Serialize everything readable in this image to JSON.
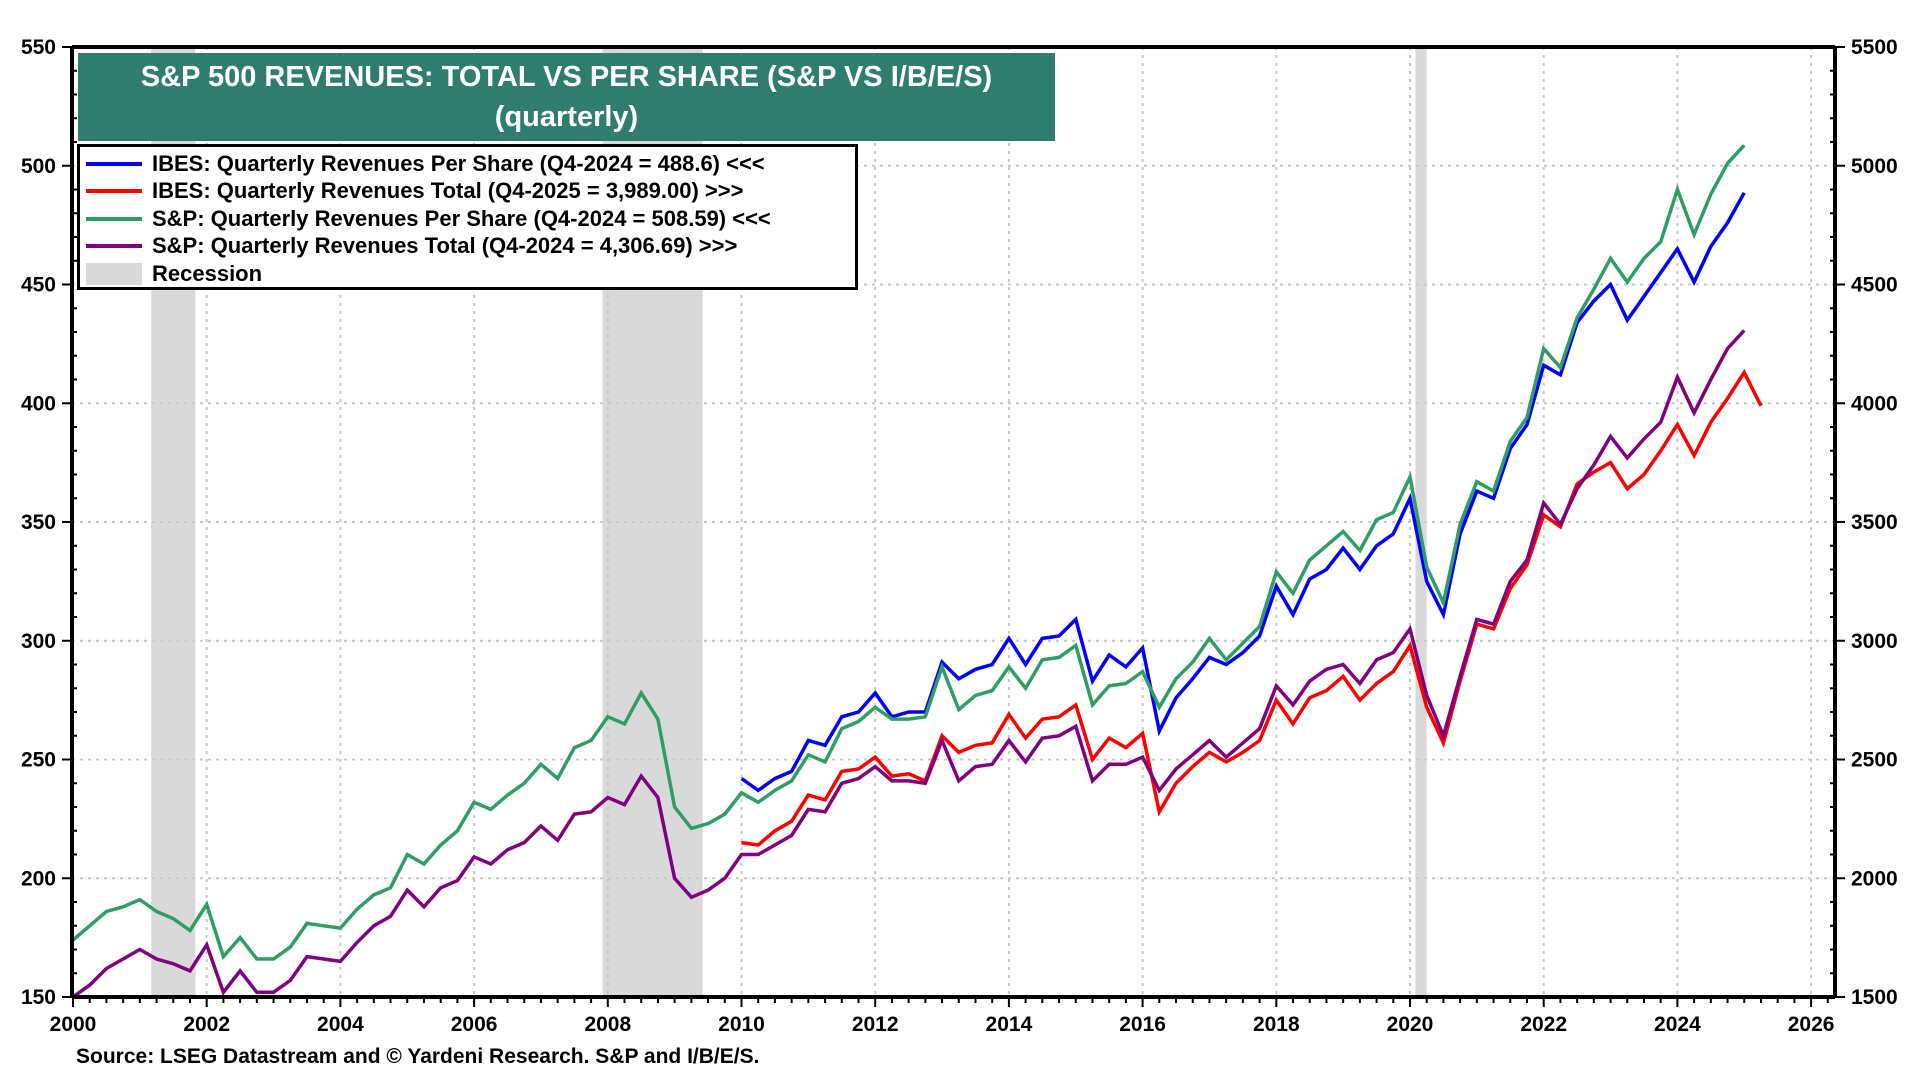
{
  "chart_data": {
    "type": "line",
    "title": "S&P 500 REVENUES: TOTAL VS PER SHARE (S&P VS I/B/E/S)",
    "subtitle": "(quarterly)",
    "xlabel": "",
    "ylabel_left": "",
    "ylabel_right": "",
    "xlim": [
      2000,
      2026.4
    ],
    "ylim_left": [
      150,
      550
    ],
    "ylim_right": [
      1500,
      5500
    ],
    "x_ticks": [
      2000,
      2002,
      2004,
      2006,
      2008,
      2010,
      2012,
      2014,
      2016,
      2018,
      2020,
      2022,
      2024,
      2026
    ],
    "y_ticks_left": [
      150,
      200,
      250,
      300,
      350,
      400,
      450,
      500,
      550
    ],
    "y_ticks_right": [
      1500,
      2000,
      2500,
      3000,
      3500,
      4000,
      4500,
      5000,
      5500
    ],
    "grid": true,
    "legend_position": "top-left",
    "recessions": [
      [
        2001.17,
        2001.83
      ],
      [
        2007.92,
        2009.42
      ],
      [
        2020.08,
        2020.25
      ]
    ],
    "series": [
      {
        "name": "IBES: Quarterly Revenues Per Share (Q4-2024 = 488.6) <<<",
        "axis": "left",
        "color": "#0000ff",
        "start": 2010.0,
        "step": 0.25,
        "values": [
          242,
          237,
          242,
          245,
          258,
          256,
          268,
          270,
          278,
          268,
          270,
          270,
          291,
          284,
          288,
          290,
          301,
          290,
          301,
          302,
          309,
          283,
          294,
          289,
          297,
          262,
          276,
          284,
          293,
          290,
          295,
          302,
          323,
          311,
          326,
          330,
          339,
          330,
          340,
          345,
          360,
          325,
          311,
          345,
          363,
          360,
          381,
          391,
          416,
          412,
          434,
          443,
          450,
          435,
          445,
          455,
          465,
          451,
          466,
          476,
          488.6
        ]
      },
      {
        "name": "IBES: Quarterly Revenues Total (Q4-2025 = 3,989.00) >>>",
        "axis": "right",
        "color": "#ff0000",
        "start": 2010.0,
        "step": 0.25,
        "values": [
          2150,
          2140,
          2200,
          2240,
          2350,
          2330,
          2450,
          2460,
          2510,
          2430,
          2440,
          2410,
          2600,
          2530,
          2560,
          2570,
          2690,
          2590,
          2670,
          2680,
          2730,
          2500,
          2590,
          2550,
          2610,
          2280,
          2400,
          2470,
          2530,
          2490,
          2530,
          2580,
          2750,
          2650,
          2760,
          2790,
          2850,
          2750,
          2820,
          2870,
          2980,
          2720,
          2570,
          2830,
          3070,
          3050,
          3220,
          3320,
          3530,
          3480,
          3660,
          3710,
          3750,
          3640,
          3700,
          3800,
          3910,
          3780,
          3920,
          4020,
          4130,
          3989
        ]
      },
      {
        "name": "S&P: Quarterly Revenues Per Share (Q4-2024 = 508.59) <<<",
        "axis": "left",
        "color": "#2e9e62",
        "start": 2000.0,
        "step": 0.25,
        "values": [
          174,
          180,
          186,
          188,
          191,
          186,
          183,
          178,
          189,
          167,
          175,
          166,
          166,
          171,
          181,
          180,
          179,
          187,
          193,
          196,
          210,
          206,
          214,
          220,
          232,
          229,
          235,
          240,
          248,
          242,
          255,
          258,
          268,
          265,
          278,
          267,
          230,
          221,
          223,
          227,
          236,
          232,
          237,
          241,
          252,
          249,
          263,
          266,
          272,
          267,
          267,
          268,
          289,
          271,
          277,
          279,
          289,
          280,
          292,
          293,
          298,
          273,
          281,
          282,
          287,
          272,
          284,
          291,
          301,
          292,
          299,
          306,
          329,
          320,
          334,
          340,
          346,
          338,
          351,
          354,
          369,
          331,
          316,
          349,
          367,
          363,
          384,
          394,
          423,
          415,
          436,
          448,
          461,
          451,
          461,
          468,
          490,
          471,
          488,
          501,
          508.59
        ]
      },
      {
        "name": "S&P: Quarterly Revenues Total (Q4-2024 = 4,306.69) >>>",
        "axis": "right",
        "color": "#800080",
        "start": 2000.0,
        "step": 0.25,
        "values": [
          1500,
          1550,
          1620,
          1660,
          1700,
          1660,
          1640,
          1610,
          1720,
          1520,
          1610,
          1520,
          1520,
          1570,
          1670,
          1660,
          1650,
          1730,
          1800,
          1840,
          1950,
          1880,
          1960,
          1990,
          2090,
          2060,
          2120,
          2150,
          2220,
          2160,
          2270,
          2280,
          2340,
          2310,
          2430,
          2340,
          2000,
          1920,
          1950,
          2000,
          2100,
          2100,
          2140,
          2180,
          2290,
          2280,
          2400,
          2420,
          2470,
          2410,
          2410,
          2400,
          2580,
          2410,
          2470,
          2480,
          2580,
          2490,
          2590,
          2600,
          2640,
          2410,
          2480,
          2480,
          2510,
          2370,
          2460,
          2520,
          2580,
          2510,
          2570,
          2630,
          2810,
          2730,
          2830,
          2880,
          2900,
          2820,
          2920,
          2950,
          3050,
          2770,
          2600,
          2850,
          3090,
          3070,
          3250,
          3340,
          3580,
          3490,
          3640,
          3740,
          3860,
          3770,
          3850,
          3920,
          4110,
          3960,
          4100,
          4230,
          4306.69
        ]
      }
    ],
    "legend": [
      {
        "label": "IBES: Quarterly Revenues Per Share (Q4-2024 = 488.6) <<<",
        "color": "#0000ff",
        "kind": "line"
      },
      {
        "label": "IBES: Quarterly Revenues Total (Q4-2025 = 3,989.00) >>>",
        "color": "#ff0000",
        "kind": "line"
      },
      {
        "label": "S&P: Quarterly Revenues Per Share (Q4-2024 = 508.59) <<<",
        "color": "#2e9e62",
        "kind": "line"
      },
      {
        "label": "S&P: Quarterly Revenues Total (Q4-2024 = 4,306.69) >>>",
        "color": "#800080",
        "kind": "line"
      },
      {
        "label": "Recession",
        "color": "#d9d9d9",
        "kind": "area"
      }
    ],
    "source": "Source: LSEG Datastream and © Yardeni Research. S&P and I/B/E/S."
  },
  "colors": {
    "title_bg": "#2e7d6f",
    "recession": "#d9d9d9",
    "grid": "#c8c8c8"
  }
}
